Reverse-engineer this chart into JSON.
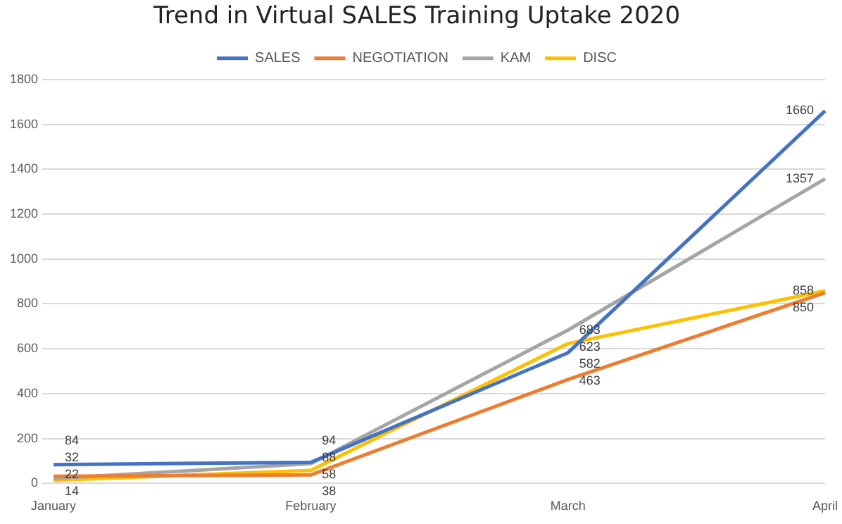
{
  "chart_data": {
    "type": "line",
    "title": "Trend in Virtual SALES Training Uptake 2020",
    "categories": [
      "January",
      "February",
      "March",
      "April"
    ],
    "series": [
      {
        "name": "SALES",
        "color": "#4472c4",
        "values": [
          84,
          94,
          582,
          1660
        ]
      },
      {
        "name": "NEGOTIATION",
        "color": "#ed7d31",
        "values": [
          32,
          38,
          463,
          850
        ]
      },
      {
        "name": "KAM",
        "color": "#a5a5a5",
        "values": [
          22,
          88,
          683,
          1357
        ]
      },
      {
        "name": "DISC",
        "color": "#ffc000",
        "values": [
          14,
          58,
          623,
          858
        ]
      }
    ],
    "ylim": [
      0,
      1800
    ],
    "yticks": [
      0,
      200,
      400,
      600,
      800,
      1000,
      1200,
      1400,
      1600,
      1800
    ],
    "grid": "y",
    "legend": "top",
    "marker": "none",
    "data_labels": true
  }
}
